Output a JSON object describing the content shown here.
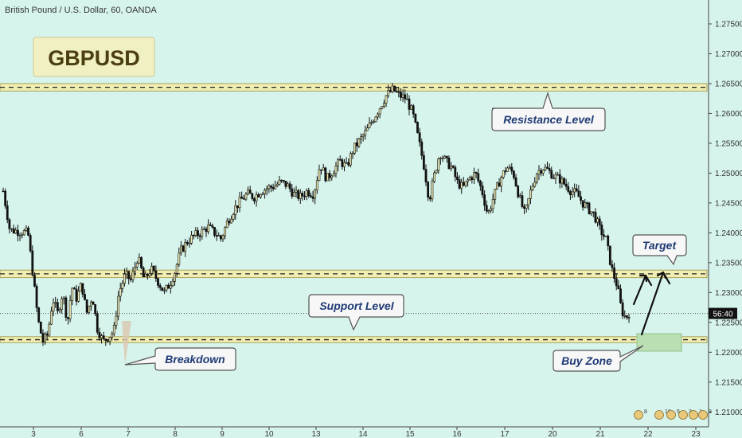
{
  "title": "British Pound / U.S. Dollar, 60, OANDA",
  "badge": "GBPUSD",
  "colors": {
    "background": "#d7f4ec",
    "zone_fill": "#f1eeb3",
    "zone_border": "#a7a45a",
    "buy_zone": "#b9dfb3",
    "candle": "#111111",
    "badge_fill": "#f0f0c2",
    "badge_text": "#4b3e10",
    "callout_text": "#1f3a74"
  },
  "chart_data": {
    "type": "candlestick",
    "symbol": "GBPUSD",
    "timeframe": "60",
    "source": "OANDA",
    "y_ticks": [
      "1.27500",
      "1.27000",
      "1.26500",
      "1.26000",
      "1.25500",
      "1.25000",
      "1.24500",
      "1.24000",
      "1.23500",
      "1.23000",
      "1.22500",
      "1.22000",
      "1.21500",
      "1.21000"
    ],
    "ylim": [
      1.2075,
      1.279
    ],
    "x_ticks": [
      "3",
      "6",
      "7",
      "8",
      "9",
      "10",
      "13",
      "14",
      "15",
      "16",
      "17",
      "20",
      "21",
      "22",
      "23"
    ],
    "price_label": "56:40",
    "current_price": 1.2265,
    "path": [
      [
        3.0,
        1.247
      ],
      [
        3.8,
        1.2405
      ],
      [
        6.0,
        1.24
      ],
      [
        6.6,
        1.233
      ],
      [
        7.2,
        1.2255
      ],
      [
        7.8,
        1.2218
      ],
      [
        8.4,
        1.223
      ],
      [
        9.0,
        1.229
      ],
      [
        9.6,
        1.2265
      ],
      [
        10.2,
        1.23
      ],
      [
        10.8,
        1.225
      ],
      [
        11.3,
        1.231
      ],
      [
        11.9,
        1.229
      ],
      [
        12.5,
        1.2315
      ],
      [
        13.1,
        1.2265
      ],
      [
        13.8,
        1.2295
      ],
      [
        14.4,
        1.224
      ],
      [
        15.1,
        1.2218
      ],
      [
        15.7,
        1.2225
      ],
      [
        16.4,
        1.2235
      ],
      [
        17.0,
        1.23
      ],
      [
        17.8,
        1.233
      ],
      [
        18.5,
        1.232
      ],
      [
        19.3,
        1.236
      ],
      [
        20.1,
        1.232
      ],
      [
        20.9,
        1.234
      ],
      [
        21.7,
        1.232
      ],
      [
        22.5,
        1.23
      ],
      [
        23.2,
        1.2315
      ],
      [
        23.8,
        1.2335
      ],
      [
        24.5,
        1.237
      ],
      [
        25.3,
        1.2385
      ],
      [
        26.1,
        1.2395
      ],
      [
        26.9,
        1.24
      ],
      [
        27.8,
        1.241
      ],
      [
        28.6,
        1.24
      ],
      [
        29.4,
        1.239
      ],
      [
        30.2,
        1.242
      ],
      [
        31.0,
        1.244
      ],
      [
        31.8,
        1.2455
      ],
      [
        32.6,
        1.2465
      ],
      [
        33.4,
        1.246
      ],
      [
        34.2,
        1.247
      ],
      [
        35.0,
        1.2475
      ],
      [
        35.8,
        1.2478
      ],
      [
        36.6,
        1.2485
      ],
      [
        37.4,
        1.248
      ],
      [
        38.2,
        1.2465
      ],
      [
        39.0,
        1.246
      ],
      [
        39.8,
        1.247
      ],
      [
        40.6,
        1.2465
      ],
      [
        41.4,
        1.2515
      ],
      [
        42.2,
        1.249
      ],
      [
        43.0,
        1.2505
      ],
      [
        43.8,
        1.252
      ],
      [
        44.6,
        1.251
      ],
      [
        45.4,
        1.254
      ],
      [
        46.2,
        1.2555
      ],
      [
        47.0,
        1.257
      ],
      [
        47.8,
        1.259
      ],
      [
        48.6,
        1.261
      ],
      [
        49.4,
        1.263
      ],
      [
        50.2,
        1.264
      ],
      [
        51.0,
        1.263
      ],
      [
        51.8,
        1.2625
      ],
      [
        52.6,
        1.26
      ],
      [
        53.4,
        1.255
      ],
      [
        54.0,
        1.251
      ],
      [
        54.6,
        1.2455
      ],
      [
        55.2,
        1.2495
      ],
      [
        55.9,
        1.2535
      ],
      [
        56.6,
        1.252
      ],
      [
        57.3,
        1.251
      ],
      [
        58.0,
        1.2485
      ],
      [
        58.7,
        1.2475
      ],
      [
        59.4,
        1.249
      ],
      [
        60.2,
        1.25
      ],
      [
        61.0,
        1.247
      ],
      [
        61.7,
        1.243
      ],
      [
        62.4,
        1.246
      ],
      [
        63.2,
        1.249
      ],
      [
        64.0,
        1.251
      ],
      [
        64.8,
        1.25
      ],
      [
        65.5,
        1.246
      ],
      [
        66.2,
        1.243
      ],
      [
        66.9,
        1.247
      ],
      [
        67.6,
        1.25
      ],
      [
        68.3,
        1.251
      ],
      [
        69.0,
        1.2505
      ],
      [
        69.7,
        1.2495
      ],
      [
        70.4,
        1.249
      ],
      [
        71.1,
        1.248
      ],
      [
        71.8,
        1.247
      ],
      [
        72.5,
        1.2465
      ],
      [
        73.2,
        1.245
      ],
      [
        73.9,
        1.244
      ],
      [
        74.6,
        1.243
      ],
      [
        75.3,
        1.2405
      ],
      [
        76.0,
        1.239
      ],
      [
        76.7,
        1.234
      ],
      [
        77.4,
        1.231
      ],
      [
        77.9,
        1.227
      ],
      [
        78.4,
        1.2258
      ],
      [
        78.8,
        1.2265
      ]
    ],
    "levels": {
      "resistance": [
        1.26375,
        1.265
      ],
      "support_upper": [
        1.2325,
        1.23375
      ],
      "support_lower": [
        1.2216,
        1.2226
      ]
    },
    "annotations": {
      "resistance": "Resistance Level",
      "support": "Support Level",
      "breakdown": "Breakdown",
      "buy_zone": "Buy Zone",
      "target": "Target"
    },
    "bottom_badges": [
      "8",
      "16",
      "5",
      "3",
      "1",
      "3"
    ]
  }
}
